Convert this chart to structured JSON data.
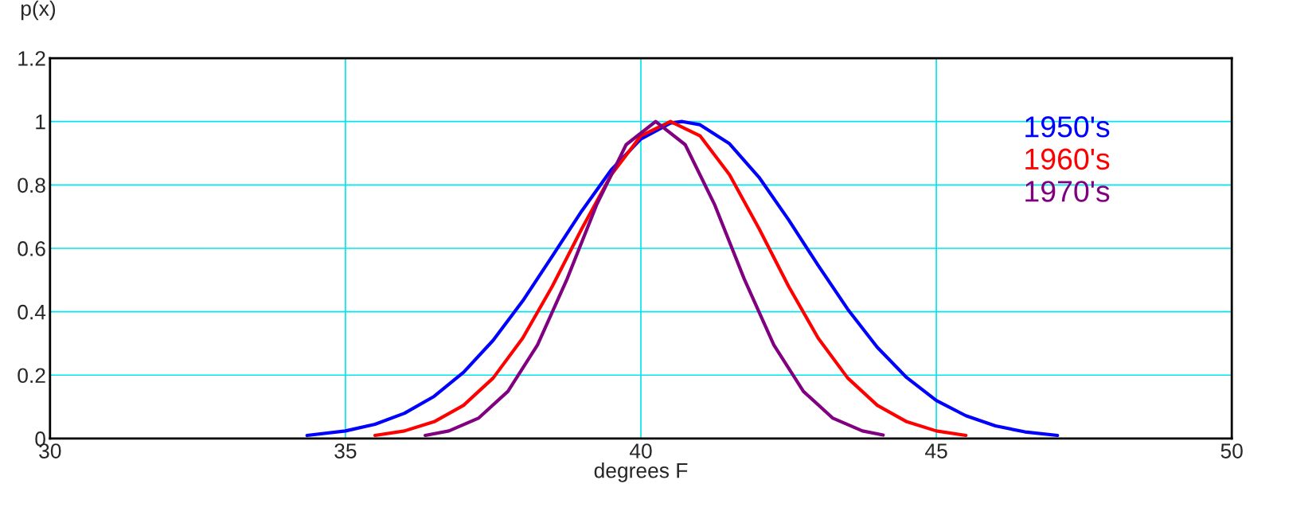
{
  "chart_data": {
    "type": "line",
    "xlabel": "degrees F",
    "ylabel": "p(x)",
    "xlim": [
      30,
      50
    ],
    "xticks": [
      30,
      35,
      40,
      45,
      50
    ],
    "ylim": [
      0,
      1.2
    ],
    "yticks": [
      0,
      0.2,
      0.4,
      0.6,
      0.8,
      1,
      1.2
    ],
    "grid": true,
    "legend": "top right",
    "line_style": "solid",
    "marker": "none",
    "series": [
      {
        "name": "1950's",
        "color": "#0000ff",
        "x": [
          34.35,
          35,
          35.5,
          36,
          36.5,
          37,
          37.5,
          38,
          38.5,
          39,
          39.5,
          40,
          40.5,
          40.7,
          41,
          41.5,
          42,
          42.5,
          43,
          43.5,
          44,
          44.5,
          45,
          45.5,
          46,
          46.5,
          47.05
        ],
        "values": [
          0.01,
          0.024,
          0.045,
          0.08,
          0.133,
          0.209,
          0.31,
          0.434,
          0.575,
          0.718,
          0.848,
          0.945,
          0.995,
          1,
          0.99,
          0.93,
          0.824,
          0.69,
          0.546,
          0.408,
          0.288,
          0.192,
          0.12,
          0.072,
          0.04,
          0.021,
          0.01
        ]
      },
      {
        "name": "1960's",
        "color": "#ff0000",
        "x": [
          35.5,
          36,
          36.5,
          37,
          37.5,
          38,
          38.5,
          39,
          39.5,
          40,
          40.5,
          41,
          41.5,
          42,
          42.5,
          43,
          43.5,
          44,
          44.5,
          45,
          45.5
        ],
        "values": [
          0.01,
          0.024,
          0.053,
          0.105,
          0.191,
          0.317,
          0.48,
          0.662,
          0.832,
          0.955,
          1,
          0.955,
          0.832,
          0.662,
          0.48,
          0.317,
          0.191,
          0.105,
          0.053,
          0.024,
          0.01
        ]
      },
      {
        "name": "1970's",
        "color": "#800080",
        "x": [
          36.35,
          36.75,
          37.25,
          37.75,
          38.25,
          38.75,
          39.25,
          39.75,
          40.25,
          40.75,
          41.25,
          41.75,
          42.25,
          42.75,
          43.25,
          43.75,
          44.1
        ],
        "values": [
          0.01,
          0.024,
          0.064,
          0.149,
          0.295,
          0.503,
          0.737,
          0.927,
          1,
          0.927,
          0.737,
          0.503,
          0.295,
          0.149,
          0.064,
          0.024,
          0.011
        ]
      }
    ]
  }
}
